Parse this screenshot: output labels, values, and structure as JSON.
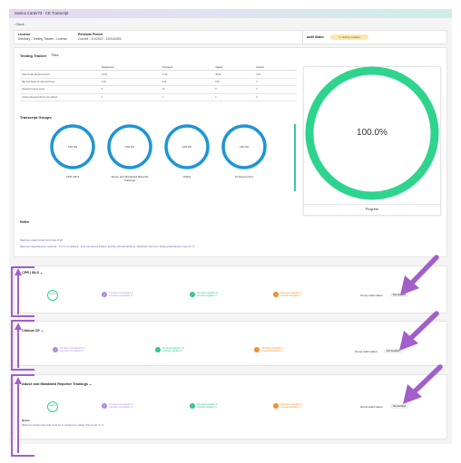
{
  "window": {
    "title": "Sosina Carter73 - CE Transcript"
  },
  "nav": {
    "back_label": "Back"
  },
  "header": {
    "license_label": "License",
    "license_value": "Dentistry - Testing Tracker - License",
    "period_label": "Renewal Period",
    "period_value": "Current - 1/1/2022 - 12/31/2024",
    "audit_status_label": "Audit Status",
    "audit_status_value": "Testing Audited"
  },
  "testing_tracker": {
    "title": "Testing Tracker",
    "filter": "Titles",
    "columns": [
      "",
      "Requirement",
      "Completed",
      "Applied",
      "Needed"
    ],
    "rows": [
      [
        "Total Credits Required Hours",
        "33.00",
        "37.00",
        "38.00",
        "0.00"
      ],
      [
        "Max Self Study On Demand Hours",
        "6.00",
        "6.00",
        "0.00",
        "6"
      ],
      [
        "Required Course Count",
        "5",
        "10",
        "8",
        "0"
      ],
      [
        "Courses Required hours not reached",
        "1",
        "1",
        "1",
        "0"
      ]
    ]
  },
  "transcript_groups": {
    "title": "Transcript Groups",
    "items": [
      {
        "name": "CPR | BLS",
        "percent": "100.0%"
      },
      {
        "name": "Abuse and Mandated Reporter Trainings",
        "percent": "100.0%"
      },
      {
        "name": "OSHA",
        "percent": "100.0%"
      },
      {
        "name": "Sc Ergonomics",
        "percent": "100.0%"
      }
    ]
  },
  "notes": {
    "title": "Notes",
    "lines": [
      "Maximum daily credit hour limit: 8.00",
      "Maximum Educational methods - 3 of 2 completed - Live Interactive Patient Activity (Virtual Webinar, Webcast) did not a Testing Mechanism meet 3 / 3"
    ]
  },
  "progress": {
    "percent": "100.0%",
    "label": "Progress",
    "value": 1.0
  },
  "groups": [
    {
      "title": "CPR | BLS",
      "ring": "100.0%",
      "stats": [
        {
          "line1": "10 Hours Completed: 0",
          "line2": "Courses Completed: 0",
          "color": "#a98be0"
        },
        {
          "line1": "10 Hours Applied: 0",
          "line2": "Courses Applied: 0",
          "color": "#2ec28f"
        },
        {
          "line1": "CE Hours Needed: 0",
          "line2": "Courses Needed: 0",
          "color": "#ef8c2a"
        }
      ],
      "audit_label": "Group audit status:",
      "audit_value": "Not Audited"
    },
    {
      "title": "Clinical CE",
      "stats": [
        {
          "line1": "10 Hours Completed: 11",
          "line2": "Courses Completed: 6",
          "color": "#a98be0"
        },
        {
          "line1": "10 Hours Applied: 11",
          "line2": "Courses Applied: 6",
          "color": "#2ec28f"
        },
        {
          "line1": "CE Hours Needed: 0",
          "line2": "Courses Needed: 0",
          "color": "#ef8c2a"
        }
      ],
      "audit_label": "Group audit status:",
      "audit_value": "Not Audited"
    },
    {
      "title": "Abuse and Mandated Reporter Trainings",
      "ring": "100.0%",
      "stats": [
        {
          "line1": "10 Hours Completed: 0",
          "line2": "Courses Completed: 0",
          "color": "#a98be0"
        },
        {
          "line1": "10 Hours Applied: 0",
          "line2": "Courses Applied: 0",
          "color": "#2ec28f"
        },
        {
          "line1": "CE Hours Needed: 0",
          "line2": "Courses Needed: 0",
          "color": "#ef8c2a"
        }
      ],
      "audit_label": "Group audit status:",
      "audit_value": "Not Audited",
      "notes_title": "Notes:",
      "notes_text": "Minimum Subgroups that must be completed to satisfy this group: 2 / 2"
    }
  ],
  "colors": {
    "ring_blue": "#1f95d6",
    "ring_green": "#2ed48e",
    "arrow": "#a25ec9"
  }
}
